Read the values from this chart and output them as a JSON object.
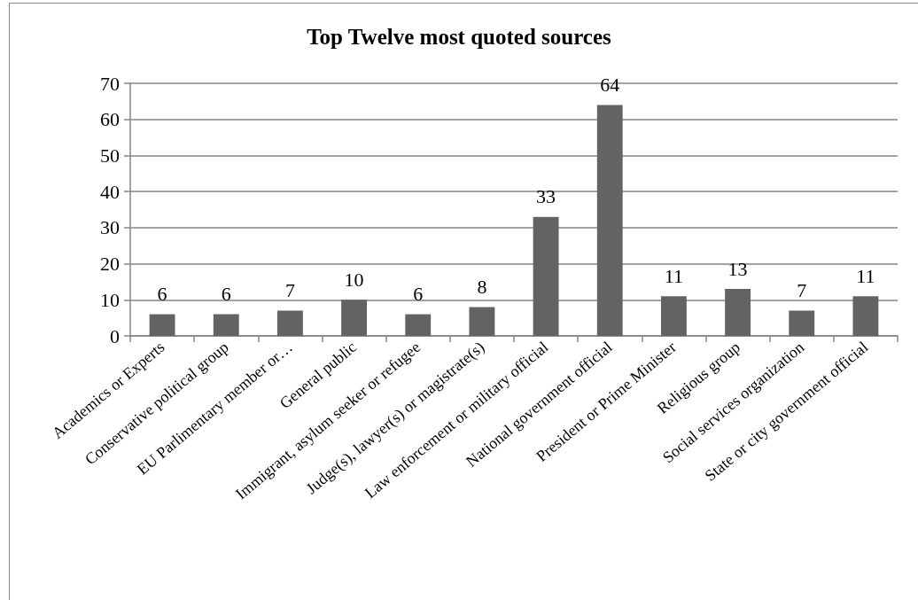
{
  "chart_data": {
    "type": "bar",
    "title": "Top Twelve most quoted sources",
    "categories": [
      "Academics or Experts",
      "Conservative political group",
      "EU Parlimentary member or…",
      "General public",
      "Immigrant, asylum seeker or refugee",
      "Judge(s), lawyer(s) or magistrate(s)",
      "Law enforcement or military official",
      "National government official",
      "President or Prime Minister",
      "Religious group",
      "Social services organization",
      "State or city government official"
    ],
    "values": [
      6,
      6,
      7,
      10,
      6,
      8,
      33,
      64,
      11,
      13,
      7,
      11
    ],
    "color": "#636363",
    "ylim": [
      0,
      70
    ],
    "yticks": [
      0,
      10,
      20,
      30,
      40,
      50,
      60,
      70
    ],
    "grid": "y",
    "data_labels": true
  }
}
